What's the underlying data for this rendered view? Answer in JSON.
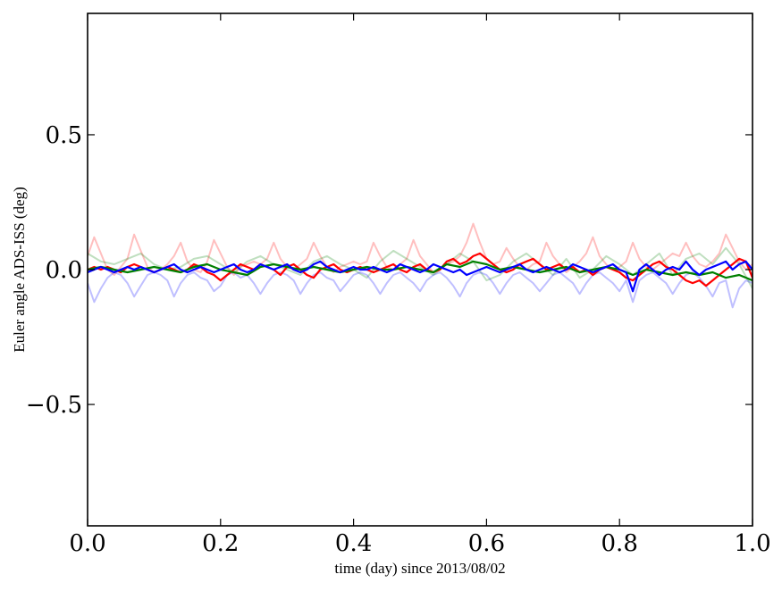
{
  "chart_data": {
    "type": "line",
    "title": "",
    "xlabel": "time (day) since 2013/08/02",
    "ylabel": "Euler angle ADS-ISS (deg)",
    "xlim": [
      0.0,
      1.0
    ],
    "ylim": [
      -0.95,
      0.95
    ],
    "x_ticks": [
      0.0,
      0.2,
      0.4,
      0.6,
      0.8,
      1.0
    ],
    "x_tick_labels": [
      "0.0",
      "0.2",
      "0.4",
      "0.6",
      "0.8",
      "1.0"
    ],
    "y_ticks": [
      -0.5,
      0.0,
      0.5
    ],
    "y_tick_labels": [
      "−0.5",
      "0.0",
      "0.5"
    ],
    "grid": false,
    "legend": "none",
    "series": [
      {
        "color": "#ff0000",
        "opacity": 0.25,
        "linewidth": 2,
        "x": [
          0.0,
          0.01,
          0.02,
          0.03,
          0.04,
          0.05,
          0.06,
          0.07,
          0.08,
          0.09,
          0.1,
          0.11,
          0.12,
          0.13,
          0.14,
          0.15,
          0.16,
          0.17,
          0.18,
          0.19,
          0.2,
          0.21,
          0.22,
          0.23,
          0.24,
          0.25,
          0.26,
          0.27,
          0.28,
          0.29,
          0.3,
          0.31,
          0.32,
          0.33,
          0.34,
          0.35,
          0.36,
          0.37,
          0.38,
          0.39,
          0.4,
          0.41,
          0.42,
          0.43,
          0.44,
          0.45,
          0.46,
          0.47,
          0.48,
          0.49,
          0.5,
          0.51,
          0.52,
          0.53,
          0.54,
          0.55,
          0.56,
          0.57,
          0.58,
          0.59,
          0.6,
          0.61,
          0.62,
          0.63,
          0.64,
          0.65,
          0.66,
          0.67,
          0.68,
          0.69,
          0.7,
          0.71,
          0.72,
          0.73,
          0.74,
          0.75,
          0.76,
          0.77,
          0.78,
          0.79,
          0.8,
          0.81,
          0.82,
          0.83,
          0.84,
          0.85,
          0.86,
          0.87,
          0.88,
          0.89,
          0.9,
          0.91,
          0.92,
          0.93,
          0.94,
          0.95,
          0.96,
          0.97,
          0.98,
          0.99,
          1.0
        ],
        "y": [
          0.05,
          0.12,
          0.06,
          0.0,
          -0.02,
          0.01,
          0.04,
          0.13,
          0.07,
          0.01,
          -0.01,
          0.0,
          0.02,
          0.05,
          0.1,
          0.03,
          0.0,
          -0.01,
          0.03,
          0.11,
          0.06,
          0.01,
          -0.02,
          0.01,
          0.02,
          0.03,
          0.02,
          0.04,
          0.1,
          0.04,
          0.01,
          0.0,
          0.02,
          0.04,
          0.1,
          0.05,
          0.01,
          -0.01,
          0.01,
          0.02,
          0.03,
          0.02,
          0.03,
          0.1,
          0.05,
          0.01,
          0.0,
          0.02,
          0.04,
          0.11,
          0.05,
          0.02,
          -0.01,
          0.0,
          0.02,
          0.03,
          0.05,
          0.1,
          0.17,
          0.1,
          0.04,
          0.02,
          0.03,
          0.08,
          0.04,
          0.01,
          0.0,
          0.02,
          0.03,
          0.1,
          0.05,
          0.02,
          -0.01,
          0.01,
          0.03,
          0.06,
          0.12,
          0.05,
          0.02,
          0.0,
          0.01,
          0.03,
          0.1,
          0.04,
          0.01,
          0.0,
          0.02,
          0.04,
          0.06,
          0.05,
          0.1,
          0.05,
          0.02,
          0.01,
          0.03,
          0.06,
          0.13,
          0.08,
          0.03,
          0.0,
          0.02
        ]
      },
      {
        "color": "#008000",
        "opacity": 0.25,
        "linewidth": 2,
        "x": [
          0.0,
          0.02,
          0.04,
          0.06,
          0.08,
          0.1,
          0.12,
          0.14,
          0.16,
          0.18,
          0.2,
          0.22,
          0.24,
          0.26,
          0.28,
          0.3,
          0.32,
          0.34,
          0.36,
          0.38,
          0.4,
          0.42,
          0.44,
          0.46,
          0.48,
          0.5,
          0.52,
          0.54,
          0.56,
          0.58,
          0.6,
          0.62,
          0.64,
          0.66,
          0.68,
          0.7,
          0.72,
          0.74,
          0.76,
          0.78,
          0.8,
          0.82,
          0.84,
          0.86,
          0.88,
          0.9,
          0.92,
          0.94,
          0.96,
          0.98,
          1.0
        ],
        "y": [
          0.06,
          0.03,
          0.02,
          0.04,
          0.06,
          0.02,
          0.0,
          0.01,
          0.04,
          0.05,
          0.02,
          -0.01,
          0.03,
          0.05,
          0.02,
          0.0,
          -0.02,
          0.03,
          0.05,
          0.02,
          0.0,
          -0.03,
          0.03,
          0.07,
          0.04,
          0.01,
          -0.02,
          0.02,
          0.06,
          0.03,
          -0.04,
          -0.02,
          0.03,
          0.06,
          0.02,
          -0.02,
          0.04,
          -0.03,
          0.0,
          0.05,
          0.02,
          -0.02,
          0.02,
          0.06,
          -0.02,
          0.04,
          0.06,
          0.02,
          0.08,
          0.02,
          -0.07
        ]
      },
      {
        "color": "#0000ff",
        "opacity": 0.25,
        "linewidth": 2,
        "x": [
          0.0,
          0.01,
          0.02,
          0.03,
          0.04,
          0.05,
          0.06,
          0.07,
          0.08,
          0.09,
          0.1,
          0.11,
          0.12,
          0.13,
          0.14,
          0.15,
          0.16,
          0.17,
          0.18,
          0.19,
          0.2,
          0.21,
          0.22,
          0.23,
          0.24,
          0.25,
          0.26,
          0.27,
          0.28,
          0.29,
          0.3,
          0.31,
          0.32,
          0.33,
          0.34,
          0.35,
          0.36,
          0.37,
          0.38,
          0.39,
          0.4,
          0.41,
          0.42,
          0.43,
          0.44,
          0.45,
          0.46,
          0.47,
          0.48,
          0.49,
          0.5,
          0.51,
          0.52,
          0.53,
          0.54,
          0.55,
          0.56,
          0.57,
          0.58,
          0.59,
          0.6,
          0.61,
          0.62,
          0.63,
          0.64,
          0.65,
          0.66,
          0.67,
          0.68,
          0.69,
          0.7,
          0.71,
          0.72,
          0.73,
          0.74,
          0.75,
          0.76,
          0.77,
          0.78,
          0.79,
          0.8,
          0.81,
          0.82,
          0.83,
          0.84,
          0.85,
          0.86,
          0.87,
          0.88,
          0.89,
          0.9,
          0.91,
          0.92,
          0.93,
          0.94,
          0.95,
          0.96,
          0.97,
          0.98,
          0.99,
          1.0
        ],
        "y": [
          -0.05,
          -0.12,
          -0.07,
          -0.03,
          -0.01,
          -0.02,
          -0.05,
          -0.1,
          -0.06,
          -0.02,
          -0.01,
          -0.02,
          -0.04,
          -0.1,
          -0.05,
          -0.02,
          -0.01,
          -0.03,
          -0.04,
          -0.08,
          -0.06,
          -0.02,
          -0.01,
          -0.03,
          -0.02,
          -0.05,
          -0.09,
          -0.05,
          -0.02,
          -0.01,
          -0.02,
          -0.04,
          -0.09,
          -0.05,
          -0.02,
          -0.01,
          -0.03,
          -0.04,
          -0.08,
          -0.05,
          -0.02,
          -0.01,
          -0.02,
          -0.05,
          -0.09,
          -0.05,
          -0.02,
          -0.01,
          -0.03,
          -0.05,
          -0.08,
          -0.04,
          -0.02,
          -0.01,
          -0.03,
          -0.06,
          -0.1,
          -0.05,
          -0.02,
          -0.01,
          -0.02,
          -0.05,
          -0.09,
          -0.05,
          -0.02,
          -0.01,
          -0.03,
          -0.05,
          -0.08,
          -0.05,
          -0.02,
          -0.01,
          -0.03,
          -0.05,
          -0.09,
          -0.05,
          -0.02,
          -0.01,
          -0.03,
          -0.05,
          -0.08,
          -0.04,
          -0.12,
          -0.04,
          -0.02,
          -0.01,
          -0.03,
          -0.05,
          -0.09,
          -0.05,
          -0.02,
          -0.01,
          -0.03,
          -0.06,
          -0.1,
          -0.05,
          -0.04,
          -0.14,
          -0.07,
          -0.04,
          -0.05
        ]
      },
      {
        "color": "#ff0000",
        "opacity": 1.0,
        "linewidth": 2.2,
        "x": [
          0.0,
          0.01,
          0.02,
          0.03,
          0.04,
          0.05,
          0.06,
          0.07,
          0.08,
          0.09,
          0.1,
          0.11,
          0.12,
          0.13,
          0.14,
          0.15,
          0.16,
          0.17,
          0.18,
          0.19,
          0.2,
          0.21,
          0.22,
          0.23,
          0.24,
          0.25,
          0.26,
          0.27,
          0.28,
          0.29,
          0.3,
          0.31,
          0.32,
          0.33,
          0.34,
          0.35,
          0.36,
          0.37,
          0.38,
          0.39,
          0.4,
          0.41,
          0.42,
          0.43,
          0.44,
          0.45,
          0.46,
          0.47,
          0.48,
          0.49,
          0.5,
          0.51,
          0.52,
          0.53,
          0.54,
          0.55,
          0.56,
          0.57,
          0.58,
          0.59,
          0.6,
          0.61,
          0.62,
          0.63,
          0.64,
          0.65,
          0.66,
          0.67,
          0.68,
          0.69,
          0.7,
          0.71,
          0.72,
          0.73,
          0.74,
          0.75,
          0.76,
          0.77,
          0.78,
          0.79,
          0.8,
          0.81,
          0.82,
          0.83,
          0.84,
          0.85,
          0.86,
          0.87,
          0.88,
          0.89,
          0.9,
          0.91,
          0.92,
          0.93,
          0.94,
          0.95,
          0.96,
          0.97,
          0.98,
          0.99,
          1.0
        ],
        "y": [
          0.0,
          0.01,
          0.0,
          0.01,
          0.0,
          -0.01,
          0.01,
          0.02,
          0.01,
          0.0,
          -0.01,
          0.0,
          0.01,
          0.0,
          -0.01,
          0.0,
          0.02,
          0.01,
          -0.01,
          -0.02,
          -0.04,
          -0.02,
          0.0,
          0.02,
          0.01,
          0.0,
          0.02,
          0.01,
          0.0,
          -0.02,
          0.01,
          0.02,
          0.0,
          -0.02,
          -0.03,
          0.0,
          0.01,
          0.02,
          0.0,
          -0.01,
          0.0,
          0.01,
          0.0,
          -0.01,
          0.0,
          0.01,
          0.02,
          0.0,
          -0.01,
          0.01,
          0.02,
          0.0,
          -0.01,
          0.0,
          0.03,
          0.04,
          0.02,
          0.03,
          0.05,
          0.06,
          0.04,
          0.02,
          0.0,
          -0.01,
          0.0,
          0.02,
          0.03,
          0.04,
          0.02,
          0.0,
          0.01,
          0.02,
          0.0,
          0.01,
          -0.01,
          0.0,
          -0.02,
          0.0,
          0.01,
          0.0,
          -0.01,
          -0.03,
          -0.04,
          -0.02,
          0.0,
          0.02,
          0.03,
          0.01,
          0.0,
          -0.02,
          -0.04,
          -0.05,
          -0.04,
          -0.06,
          -0.04,
          -0.02,
          0.0,
          0.02,
          0.04,
          0.03,
          -0.03
        ]
      },
      {
        "color": "#008000",
        "opacity": 1.0,
        "linewidth": 2.2,
        "x": [
          0.0,
          0.02,
          0.04,
          0.06,
          0.08,
          0.1,
          0.12,
          0.14,
          0.16,
          0.18,
          0.2,
          0.22,
          0.24,
          0.26,
          0.28,
          0.3,
          0.32,
          0.34,
          0.36,
          0.38,
          0.4,
          0.42,
          0.44,
          0.46,
          0.48,
          0.5,
          0.52,
          0.54,
          0.56,
          0.58,
          0.6,
          0.62,
          0.64,
          0.66,
          0.68,
          0.7,
          0.72,
          0.74,
          0.76,
          0.78,
          0.8,
          0.82,
          0.84,
          0.86,
          0.88,
          0.9,
          0.92,
          0.94,
          0.96,
          0.98,
          1.0
        ],
        "y": [
          0.0,
          0.01,
          0.0,
          -0.01,
          0.0,
          0.01,
          0.0,
          -0.01,
          0.01,
          0.02,
          0.0,
          -0.01,
          -0.02,
          0.01,
          0.02,
          0.01,
          0.0,
          0.01,
          0.0,
          -0.01,
          0.0,
          0.01,
          0.0,
          0.0,
          0.01,
          0.0,
          -0.01,
          0.02,
          0.01,
          0.03,
          0.02,
          0.0,
          0.01,
          0.0,
          -0.01,
          0.0,
          0.01,
          -0.01,
          0.0,
          0.01,
          0.0,
          -0.02,
          0.0,
          -0.01,
          -0.02,
          -0.01,
          -0.02,
          -0.01,
          -0.03,
          -0.02,
          -0.04
        ]
      },
      {
        "color": "#0000ff",
        "opacity": 1.0,
        "linewidth": 2.2,
        "x": [
          0.0,
          0.01,
          0.02,
          0.03,
          0.04,
          0.05,
          0.06,
          0.07,
          0.08,
          0.09,
          0.1,
          0.11,
          0.12,
          0.13,
          0.14,
          0.15,
          0.16,
          0.17,
          0.18,
          0.19,
          0.2,
          0.21,
          0.22,
          0.23,
          0.24,
          0.25,
          0.26,
          0.27,
          0.28,
          0.29,
          0.3,
          0.31,
          0.32,
          0.33,
          0.34,
          0.35,
          0.36,
          0.37,
          0.38,
          0.39,
          0.4,
          0.41,
          0.42,
          0.43,
          0.44,
          0.45,
          0.46,
          0.47,
          0.48,
          0.49,
          0.5,
          0.51,
          0.52,
          0.53,
          0.54,
          0.55,
          0.56,
          0.57,
          0.58,
          0.59,
          0.6,
          0.61,
          0.62,
          0.63,
          0.64,
          0.65,
          0.66,
          0.67,
          0.68,
          0.69,
          0.7,
          0.71,
          0.72,
          0.73,
          0.74,
          0.75,
          0.76,
          0.77,
          0.78,
          0.79,
          0.8,
          0.81,
          0.82,
          0.83,
          0.84,
          0.85,
          0.86,
          0.87,
          0.88,
          0.89,
          0.9,
          0.91,
          0.92,
          0.93,
          0.94,
          0.95,
          0.96,
          0.97,
          0.98,
          0.99,
          1.0
        ],
        "y": [
          -0.01,
          0.0,
          0.01,
          0.0,
          -0.01,
          0.0,
          0.01,
          0.0,
          0.01,
          0.0,
          -0.01,
          0.0,
          0.01,
          0.02,
          0.0,
          -0.01,
          0.0,
          0.01,
          0.0,
          -0.01,
          0.0,
          0.01,
          0.02,
          0.0,
          -0.01,
          0.0,
          0.02,
          0.01,
          0.0,
          0.01,
          0.02,
          0.0,
          -0.01,
          0.0,
          0.02,
          0.03,
          0.01,
          0.0,
          -0.01,
          0.0,
          0.01,
          0.0,
          0.0,
          0.01,
          0.0,
          -0.01,
          0.0,
          0.02,
          0.01,
          0.0,
          -0.01,
          0.0,
          0.02,
          0.01,
          0.0,
          -0.01,
          0.0,
          -0.02,
          -0.01,
          0.0,
          0.01,
          0.0,
          -0.01,
          0.0,
          0.01,
          0.02,
          0.0,
          -0.01,
          0.0,
          0.01,
          0.0,
          -0.01,
          0.0,
          0.02,
          0.01,
          0.0,
          -0.01,
          0.0,
          0.01,
          0.02,
          0.0,
          -0.01,
          -0.08,
          0.0,
          0.02,
          0.0,
          -0.02,
          0.0,
          0.01,
          0.0,
          0.03,
          0.0,
          -0.02,
          0.0,
          0.01,
          0.02,
          0.03,
          0.0,
          0.02,
          0.03,
          0.0
        ]
      }
    ]
  }
}
